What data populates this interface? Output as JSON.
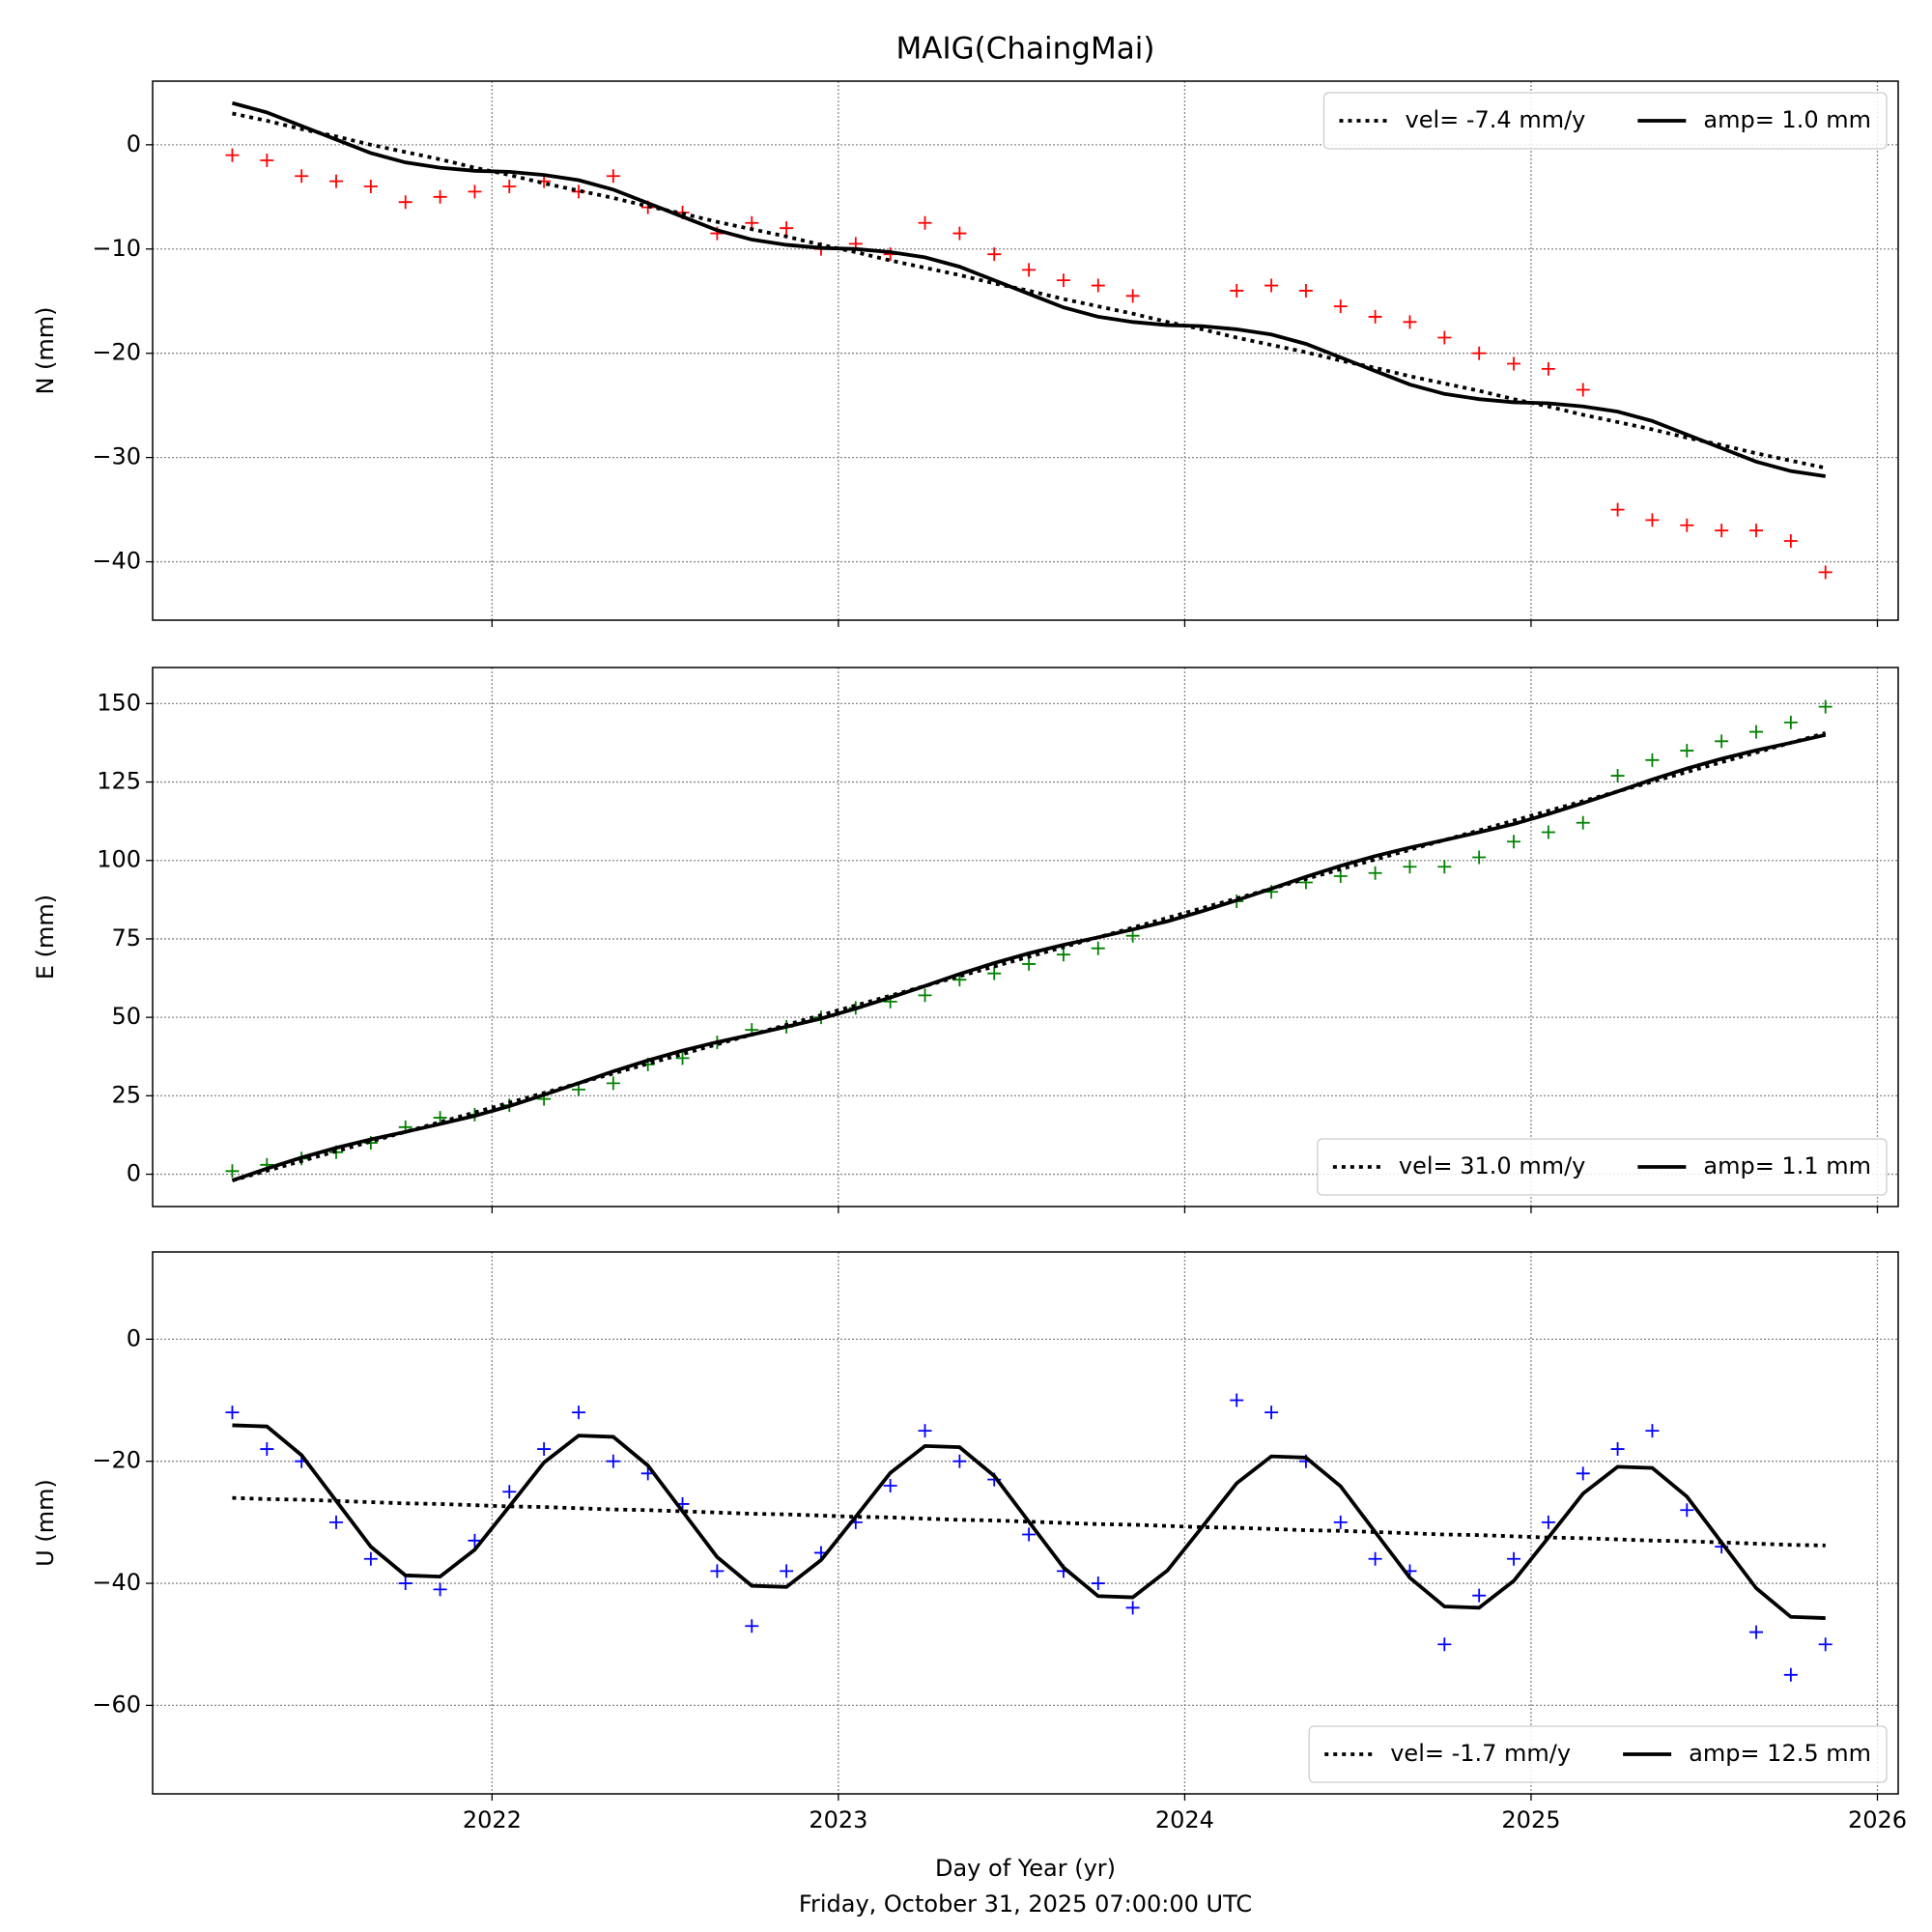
{
  "chart_data": [
    {
      "type": "scatter",
      "title": "MAIG(ChaingMai)",
      "ylabel": "N (mm)",
      "ylim": [
        -45.6,
        6.1
      ],
      "yticks": [
        0,
        {
          "value": -10,
          "label": "−10"
        },
        {
          "value": -20,
          "label": "−20"
        },
        {
          "value": -30,
          "label": "−30"
        },
        {
          "value": -40,
          "label": "−40"
        }
      ],
      "grid": true,
      "legend": "upper right",
      "x": [
        2021.25,
        2021.35,
        2021.45,
        2021.55,
        2021.65,
        2021.75,
        2021.85,
        2021.95,
        2022.05,
        2022.15,
        2022.25,
        2022.35,
        2022.45,
        2022.55,
        2022.65,
        2022.75,
        2022.85,
        2022.95,
        2023.05,
        2023.15,
        2023.25,
        2023.35,
        2023.45,
        2023.55,
        2023.65,
        2023.75,
        2023.85,
        2023.95,
        2024.05,
        2024.15,
        2024.25,
        2024.35,
        2024.45,
        2024.55,
        2024.65,
        2024.75,
        2024.85,
        2024.95,
        2025.05,
        2025.15,
        2025.25,
        2025.35,
        2025.45,
        2025.55,
        2025.65,
        2025.75,
        2025.85
      ],
      "series": [
        {
          "color": "#ff0000",
          "marker": "+",
          "values": [
            -1,
            -1.5,
            -3,
            -3.5,
            -4,
            -5.5,
            -5,
            -4.5,
            -4,
            -3.5,
            -4.5,
            -3,
            -6,
            -6.5,
            -8.5,
            -7.5,
            -8,
            -10,
            -9.5,
            -10.5,
            -7.5,
            -8.5,
            -10.5,
            -12,
            -13,
            -13.5,
            -14.5,
            null,
            null,
            -14,
            -13.5,
            -14,
            -15.5,
            -16.5,
            -17,
            -18.5,
            -20,
            -21,
            -21.5,
            -23.5,
            -35,
            -36,
            -36.5,
            -37,
            -37,
            -38,
            -41
          ]
        },
        {
          "name": "vel= -7.4 mm/y",
          "color": "#000000",
          "style": "dotted",
          "values": [
            3,
            2.3,
            1.5,
            0.8,
            0,
            -0.7,
            -1.4,
            -2.2,
            -2.9,
            -3.7,
            -4.4,
            -5.1,
            -5.9,
            -6.6,
            -7.4,
            -8.1,
            -8.8,
            -9.6,
            -10.3,
            -11.1,
            -11.8,
            -12.5,
            -13.3,
            -14,
            -14.8,
            -15.5,
            -16.2,
            -17,
            -17.7,
            -18.5,
            -19.2,
            -19.9,
            -20.7,
            -21.4,
            -22.2,
            -22.9,
            -23.6,
            -24.4,
            -25.1,
            -25.9,
            -26.6,
            -27.3,
            -28.1,
            -28.8,
            -29.6,
            -30.3,
            -31
          ]
        },
        {
          "name": "amp= 1.0 mm",
          "color": "#000000",
          "style": "solid",
          "values": [
            4,
            3.1,
            1.8,
            0.5,
            -0.8,
            -1.7,
            -2.2,
            -2.5,
            -2.6,
            -2.9,
            -3.4,
            -4.3,
            -5.6,
            -6.9,
            -8.2,
            -9.1,
            -9.6,
            -9.9,
            -10,
            -10.3,
            -10.8,
            -11.7,
            -13,
            -14.3,
            -15.6,
            -16.5,
            -17,
            -17.3,
            -17.4,
            -17.7,
            -18.2,
            -19.1,
            -20.4,
            -21.7,
            -23,
            -23.9,
            -24.4,
            -24.7,
            -24.8,
            -25.1,
            -25.6,
            -26.5,
            -27.8,
            -29.1,
            -30.4,
            -31.3,
            -31.8
          ]
        }
      ]
    },
    {
      "type": "scatter",
      "ylabel": "E (mm)",
      "ylim": [
        -10.3,
        161.5
      ],
      "yticks": [
        0,
        25,
        50,
        75,
        100,
        125,
        150
      ],
      "grid": true,
      "legend": "lower right",
      "x": [
        2021.25,
        2021.35,
        2021.45,
        2021.55,
        2021.65,
        2021.75,
        2021.85,
        2021.95,
        2022.05,
        2022.15,
        2022.25,
        2022.35,
        2022.45,
        2022.55,
        2022.65,
        2022.75,
        2022.85,
        2022.95,
        2023.05,
        2023.15,
        2023.25,
        2023.35,
        2023.45,
        2023.55,
        2023.65,
        2023.75,
        2023.85,
        2023.95,
        2024.05,
        2024.15,
        2024.25,
        2024.35,
        2024.45,
        2024.55,
        2024.65,
        2024.75,
        2024.85,
        2024.95,
        2025.05,
        2025.15,
        2025.25,
        2025.35,
        2025.45,
        2025.55,
        2025.65,
        2025.75,
        2025.85
      ],
      "series": [
        {
          "color": "#008000",
          "marker": "+",
          "values": [
            1,
            3,
            5,
            7,
            10,
            15,
            18,
            19,
            22,
            24,
            27,
            29,
            35,
            37,
            42,
            46,
            47,
            50,
            53,
            55,
            57,
            62,
            64,
            67,
            70,
            72,
            76,
            null,
            null,
            87,
            90,
            93,
            95,
            96,
            98,
            98,
            101,
            106,
            109,
            112,
            127,
            132,
            135,
            138,
            141,
            144,
            149
          ]
        },
        {
          "name": "vel= 31.0 mm/y",
          "color": "#000000",
          "style": "dotted",
          "values": [
            -2,
            1.1,
            4.2,
            7.3,
            10.4,
            13.5,
            16.6,
            19.7,
            22.8,
            25.9,
            29,
            32.1,
            35.2,
            38.3,
            41.4,
            44.5,
            47.6,
            50.7,
            53.8,
            56.9,
            60,
            63.1,
            66.2,
            69.3,
            72.4,
            75.5,
            78.6,
            81.7,
            84.8,
            87.9,
            91,
            94.1,
            97.2,
            100.3,
            103.4,
            106.5,
            109.6,
            112.7,
            115.8,
            118.9,
            122,
            125.1,
            128.2,
            131.3,
            134.4,
            137.5,
            140.6
          ]
        },
        {
          "name": "amp= 1.1 mm",
          "color": "#000000",
          "style": "solid",
          "values": [
            -2,
            1.8,
            5.3,
            8.4,
            11.1,
            13.5,
            16,
            18.6,
            21.7,
            25.3,
            29,
            32.8,
            36.3,
            39.4,
            42.1,
            44.5,
            47,
            49.6,
            52.8,
            56.3,
            60,
            63.8,
            67.3,
            70.4,
            73.1,
            75.5,
            78,
            80.6,
            83.8,
            87.3,
            91,
            94.8,
            98.3,
            101.4,
            104.1,
            106.5,
            109,
            111.6,
            114.8,
            118.3,
            122,
            125.8,
            129.3,
            132.4,
            135.1,
            137.5,
            140
          ]
        }
      ]
    },
    {
      "type": "scatter",
      "ylabel": "U (mm)",
      "ylim": [
        -74.5,
        14.3
      ],
      "yticks": [
        0,
        {
          "value": -20,
          "label": "−20"
        },
        {
          "value": -40,
          "label": "−40"
        },
        {
          "value": -60,
          "label": "−60"
        }
      ],
      "grid": true,
      "legend": "lower right",
      "xlim": [
        2021.02,
        2026.06
      ],
      "xticks": [
        2022,
        2023,
        2024,
        2025,
        2026
      ],
      "xlabel": "Day of Year (yr)",
      "caption": "Friday, October 31, 2025 07:00:00 UTC",
      "x": [
        2021.25,
        2021.35,
        2021.45,
        2021.55,
        2021.65,
        2021.75,
        2021.85,
        2021.95,
        2022.05,
        2022.15,
        2022.25,
        2022.35,
        2022.45,
        2022.55,
        2022.65,
        2022.75,
        2022.85,
        2022.95,
        2023.05,
        2023.15,
        2023.25,
        2023.35,
        2023.45,
        2023.55,
        2023.65,
        2023.75,
        2023.85,
        2023.95,
        2024.05,
        2024.15,
        2024.25,
        2024.35,
        2024.45,
        2024.55,
        2024.65,
        2024.75,
        2024.85,
        2024.95,
        2025.05,
        2025.15,
        2025.25,
        2025.35,
        2025.45,
        2025.55,
        2025.65,
        2025.75,
        2025.85
      ],
      "series": [
        {
          "color": "#0000ff",
          "marker": "+",
          "values": [
            -12,
            -18,
            -20,
            -30,
            -36,
            -40,
            -41,
            -33,
            -25,
            -18,
            -12,
            -20,
            -22,
            -27,
            -38,
            -47,
            -38,
            -35,
            -30,
            -24,
            -15,
            -20,
            -23,
            -32,
            -38,
            -40,
            -44,
            null,
            null,
            -10,
            -12,
            -20,
            -30,
            -36,
            -38,
            -50,
            -42,
            -36,
            -30,
            -22,
            -18,
            -15,
            -28,
            -34,
            -48,
            -55,
            -50
          ]
        },
        {
          "name": "vel= -1.7 mm/y",
          "color": "#000000",
          "style": "dotted",
          "values": [
            -26,
            -26.2,
            -26.3,
            -26.5,
            -26.7,
            -26.9,
            -27,
            -27.2,
            -27.4,
            -27.5,
            -27.7,
            -27.9,
            -28,
            -28.2,
            -28.4,
            -28.6,
            -28.7,
            -28.9,
            -29.1,
            -29.2,
            -29.4,
            -29.6,
            -29.7,
            -29.9,
            -30.1,
            -30.3,
            -30.4,
            -30.6,
            -30.8,
            -30.9,
            -31.1,
            -31.3,
            -31.4,
            -31.6,
            -31.8,
            -32,
            -32.1,
            -32.3,
            -32.5,
            -32.6,
            -32.8,
            -33,
            -33.1,
            -33.3,
            -33.5,
            -33.7,
            -33.8
          ]
        },
        {
          "name": "amp= 12.5 mm",
          "color": "#000000",
          "style": "solid",
          "values": [
            -14.1,
            -14.3,
            -19,
            -26.5,
            -34,
            -38.7,
            -38.9,
            -34.5,
            -27.4,
            -20.2,
            -15.8,
            -16,
            -20.7,
            -28.2,
            -35.7,
            -40.4,
            -40.6,
            -36.2,
            -29.1,
            -21.9,
            -17.5,
            -17.7,
            -22.4,
            -29.9,
            -37.4,
            -42.1,
            -42.3,
            -37.9,
            -30.8,
            -23.6,
            -19.2,
            -19.4,
            -24.1,
            -31.6,
            -39.1,
            -43.8,
            -44,
            -39.6,
            -32.5,
            -25.3,
            -20.9,
            -21.1,
            -25.8,
            -33.3,
            -40.8,
            -45.5,
            -45.7
          ]
        }
      ]
    }
  ]
}
